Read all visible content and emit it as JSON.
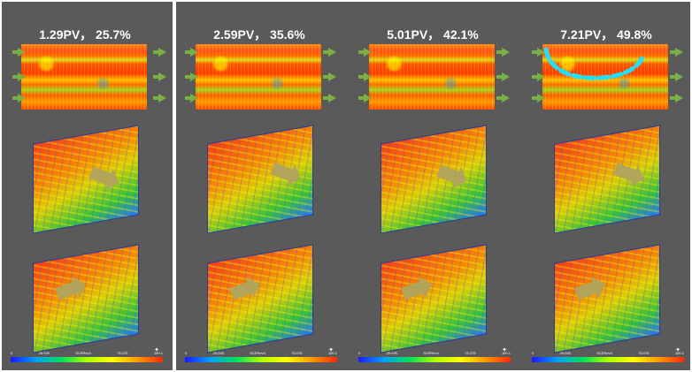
{
  "panels": [
    {
      "title": "1.29PV， 25.7%"
    },
    {
      "title": "2.59PV， 35.6%"
    },
    {
      "title": "5.01PV， 42.1%"
    },
    {
      "title": "7.21PV， 49.8%"
    }
  ],
  "colorbar": {
    "ticks": [
      "0",
      "25.025",
      "50.05",
      "75.075",
      "100.1"
    ],
    "label": "SCERev4",
    "colors": [
      "#1a1aff",
      "#00a0ff",
      "#00e05a",
      "#aaff00",
      "#ffff00",
      "#ff9900",
      "#ff2a00"
    ]
  },
  "highlight_color": "#1ee0ff",
  "flow_arrow_color": "#78b043"
}
